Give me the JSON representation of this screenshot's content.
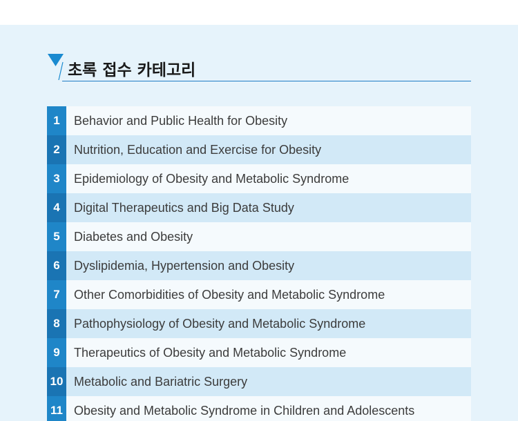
{
  "section": {
    "title": "초록 접수 카테고리"
  },
  "categories": [
    {
      "number": "1",
      "label": "Behavior and Public Health for Obesity"
    },
    {
      "number": "2",
      "label": "Nutrition, Education and Exercise for Obesity"
    },
    {
      "number": "3",
      "label": "Epidemiology of Obesity and Metabolic Syndrome"
    },
    {
      "number": "4",
      "label": "Digital Therapeutics and Big Data Study"
    },
    {
      "number": "5",
      "label": "Diabetes and Obesity"
    },
    {
      "number": "6",
      "label": "Dyslipidemia, Hypertension and Obesity"
    },
    {
      "number": "7",
      "label": "Other Comorbidities of Obesity and Metabolic Syndrome"
    },
    {
      "number": "8",
      "label": "Pathophysiology of Obesity and Metabolic Syndrome"
    },
    {
      "number": "9",
      "label": "Therapeutics of Obesity and Metabolic Syndrome"
    },
    {
      "number": "10",
      "label": "Metabolic and Bariatric Surgery"
    },
    {
      "number": "11",
      "label": "Obesity and Metabolic Syndrome in Children and Adolescents"
    }
  ],
  "colors": {
    "panel_background": "#e6f3fb",
    "accent": "#1f86c8",
    "row_light": "#f5fafd",
    "row_dark": "#d2e9f7"
  }
}
